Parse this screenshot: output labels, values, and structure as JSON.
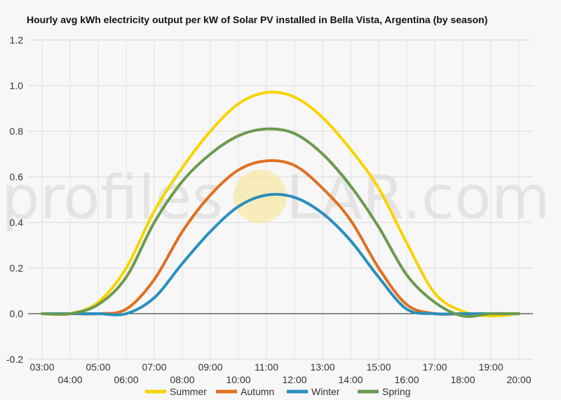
{
  "watermark": {
    "left": "profiles",
    "right": "LAR.com",
    "sun_color": "#fbe38a"
  },
  "chart_data": {
    "type": "line",
    "title": "Hourly avg kWh electricity output per kW of Solar PV installed in Bella Vista, Argentina (by season)",
    "xlabel": "",
    "ylabel": "",
    "x": [
      3,
      4,
      5,
      6,
      7,
      8,
      9,
      10,
      11,
      12,
      13,
      14,
      15,
      16,
      17,
      18,
      19,
      20
    ],
    "x_tick_labels": [
      "03:00",
      "04:00",
      "05:00",
      "06:00",
      "07:00",
      "08:00",
      "09:00",
      "10:00",
      "11:00",
      "12:00",
      "13:00",
      "14:00",
      "15:00",
      "16:00",
      "17:00",
      "18:00",
      "19:00",
      "20:00"
    ],
    "ylim": [
      -0.2,
      1.2
    ],
    "y_ticks": [
      -0.2,
      0.0,
      0.2,
      0.4,
      0.6,
      0.8,
      1.0,
      1.2
    ],
    "y_tick_labels": [
      "-0.2",
      "0.0",
      "0.2",
      "0.4",
      "0.6",
      "0.8",
      "1.0",
      "1.2"
    ],
    "grid": true,
    "legend_position": "bottom",
    "series": [
      {
        "name": "Summer",
        "color": "#f7d400",
        "values": [
          0,
          0,
          0.05,
          0.2,
          0.45,
          0.64,
          0.8,
          0.92,
          0.97,
          0.95,
          0.86,
          0.72,
          0.55,
          0.31,
          0.09,
          0.01,
          -0.01,
          0
        ]
      },
      {
        "name": "Autumn",
        "color": "#e07020",
        "values": [
          0,
          0,
          0,
          0.02,
          0.15,
          0.36,
          0.52,
          0.63,
          0.67,
          0.65,
          0.55,
          0.41,
          0.2,
          0.04,
          0,
          0,
          0,
          0
        ]
      },
      {
        "name": "Winter",
        "color": "#2a8fbd",
        "values": [
          0,
          0,
          0,
          0,
          0.07,
          0.22,
          0.36,
          0.47,
          0.52,
          0.51,
          0.44,
          0.32,
          0.16,
          0.02,
          0,
          0,
          0,
          0
        ]
      },
      {
        "name": "Spring",
        "color": "#6b9a4e",
        "values": [
          0,
          0,
          0.04,
          0.16,
          0.4,
          0.58,
          0.7,
          0.78,
          0.81,
          0.79,
          0.7,
          0.56,
          0.38,
          0.17,
          0.05,
          -0.01,
          0,
          0
        ]
      }
    ]
  }
}
